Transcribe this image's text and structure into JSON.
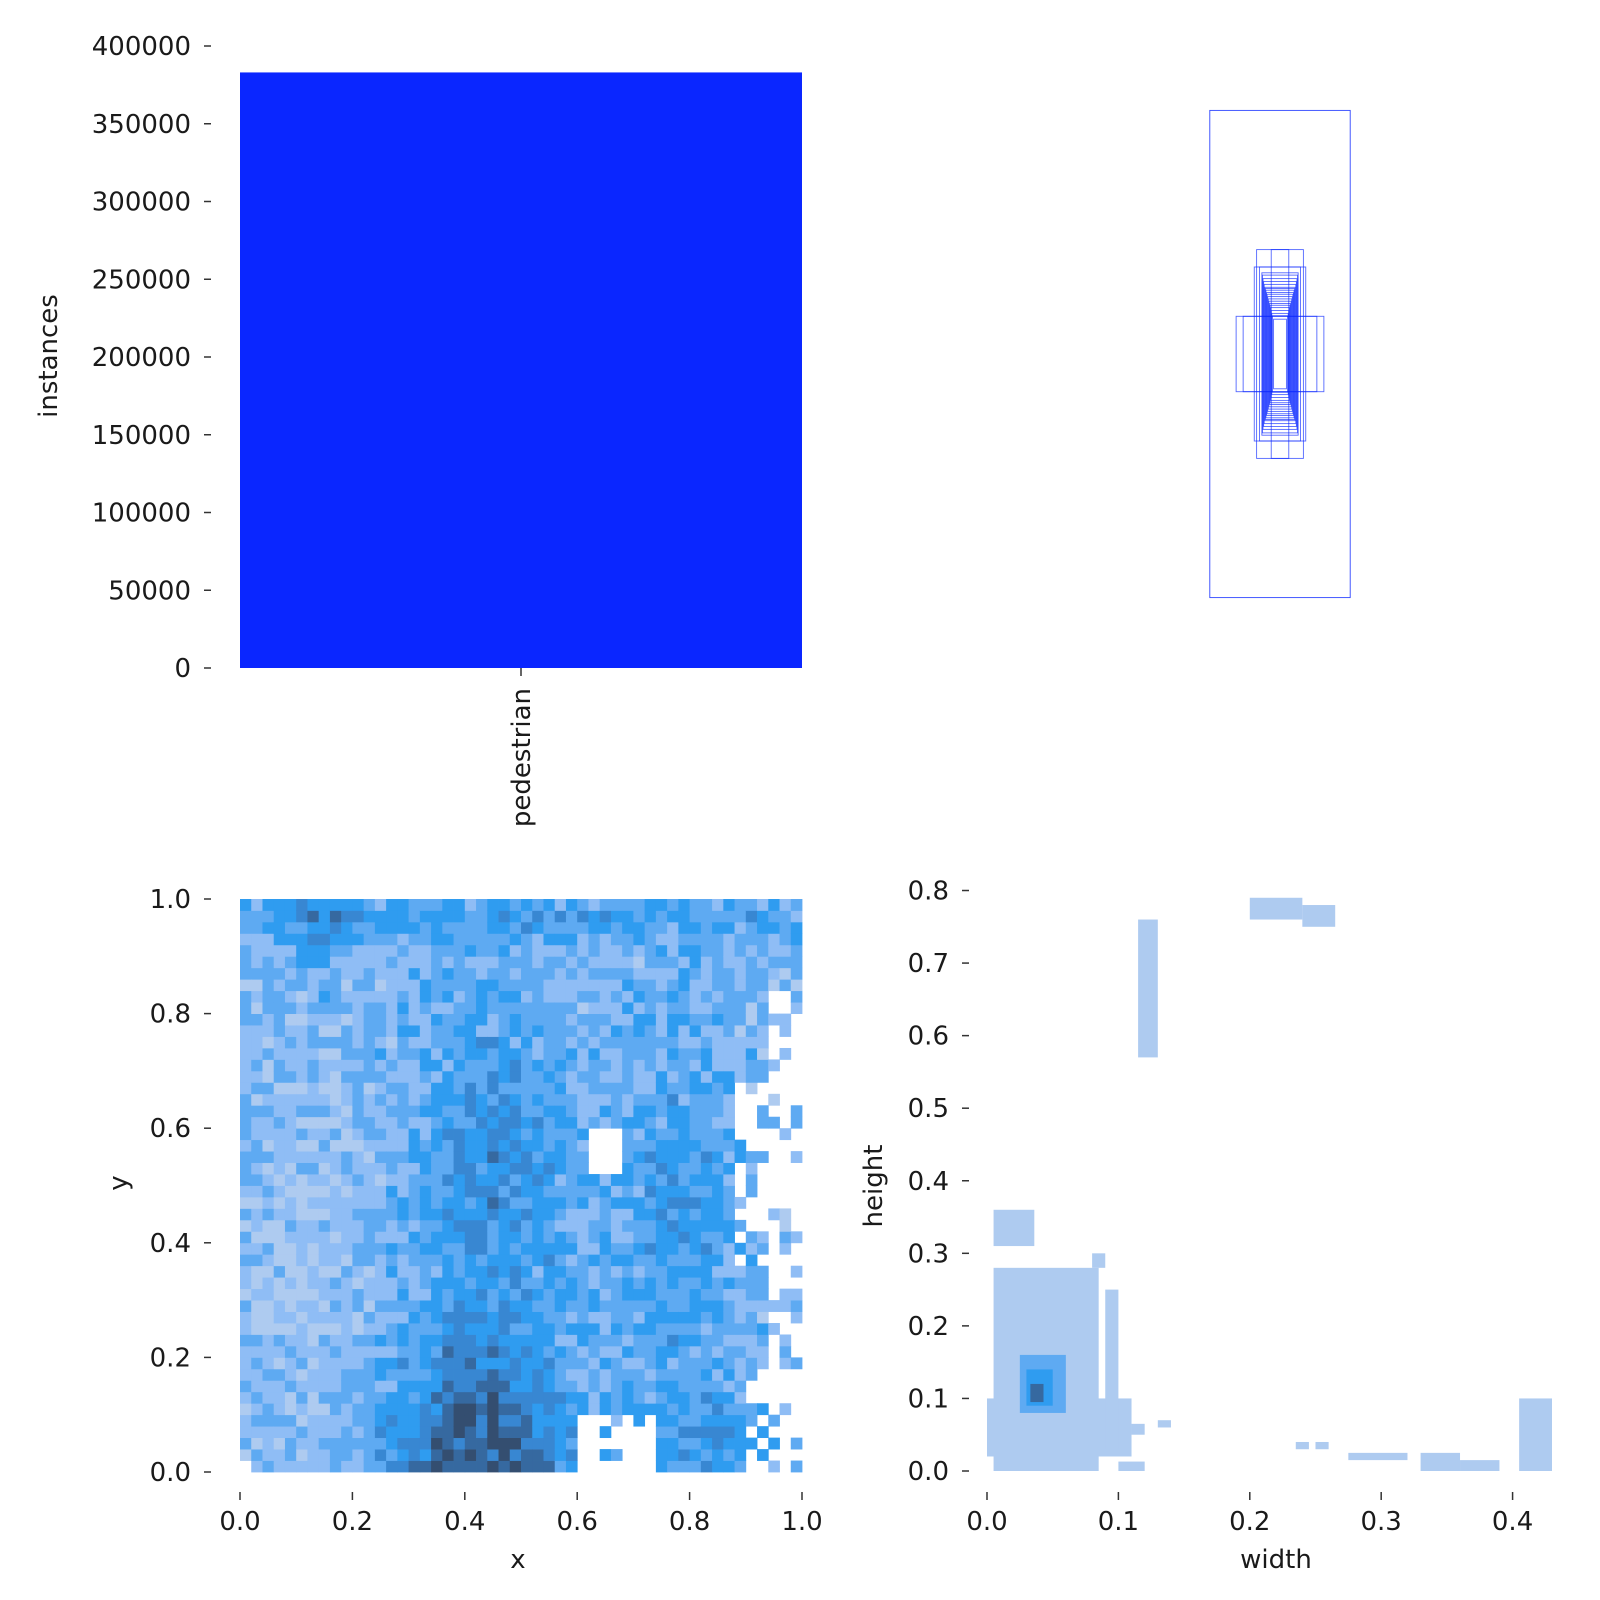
{
  "chart_data": [
    {
      "type": "bar",
      "categories": [
        "pedestrian"
      ],
      "values": [
        383000
      ],
      "ylabel": "instances",
      "xlabel": "",
      "ylim": [
        0,
        400000
      ],
      "yticks": [
        "0",
        "50000",
        "100000",
        "150000",
        "200000",
        "250000",
        "300000",
        "350000",
        "400000"
      ],
      "color": "#0a26ff",
      "grid": false
    },
    {
      "type": "scatter",
      "description_axes": "none",
      "note": "overlaid bounding boxes centred at common origin",
      "boxes_wh": [
        [
          0.24,
          0.84
        ],
        [
          0.08,
          0.36
        ],
        [
          0.15,
          0.13
        ],
        [
          0.126,
          0.13
        ],
        [
          0.088,
          0.3
        ],
        [
          0.07,
          0.3
        ],
        [
          0.062,
          0.28
        ],
        [
          0.06,
          0.272
        ],
        [
          0.058,
          0.26
        ],
        [
          0.056,
          0.25
        ],
        [
          0.054,
          0.24
        ],
        [
          0.052,
          0.23
        ],
        [
          0.05,
          0.226
        ],
        [
          0.048,
          0.22
        ],
        [
          0.046,
          0.212
        ],
        [
          0.044,
          0.206
        ],
        [
          0.042,
          0.198
        ],
        [
          0.04,
          0.19
        ],
        [
          0.038,
          0.182
        ],
        [
          0.036,
          0.174
        ],
        [
          0.034,
          0.168
        ],
        [
          0.032,
          0.16
        ],
        [
          0.03,
          0.15
        ],
        [
          0.028,
          0.14
        ],
        [
          0.026,
          0.132
        ],
        [
          0.03,
          0.36
        ],
        [
          0.022,
          0.12
        ]
      ],
      "color": "#0a26ff"
    },
    {
      "type": "heatmap",
      "xlabel": "x",
      "ylabel": "y",
      "xlim": [
        0.0,
        1.0
      ],
      "ylim": [
        0.0,
        1.0
      ],
      "xticks": [
        "0.0",
        "0.2",
        "0.4",
        "0.6",
        "0.8",
        "1.0"
      ],
      "yticks": [
        "0.0",
        "0.2",
        "0.4",
        "0.6",
        "0.8",
        "1.0"
      ],
      "bins": 50,
      "colors": [
        "#aecbf0",
        "#8fbdf5",
        "#5eaaf2",
        "#2f9cf0",
        "#3887d2",
        "#3669a0",
        "#344e70"
      ]
    },
    {
      "type": "heatmap",
      "xlabel": "width",
      "ylabel": "height",
      "xlim": [
        -0.005,
        0.43
      ],
      "ylim": [
        -0.01,
        0.82
      ],
      "xticks": [
        "0.0",
        "0.1",
        "0.2",
        "0.3",
        "0.4"
      ],
      "yticks": [
        "0.0",
        "0.1",
        "0.2",
        "0.3",
        "0.4",
        "0.5",
        "0.6",
        "0.7",
        "0.8"
      ],
      "bins": 50,
      "colors": [
        "#aecbf0",
        "#5eaaf2",
        "#2f9cf0",
        "#3669a0"
      ]
    }
  ]
}
